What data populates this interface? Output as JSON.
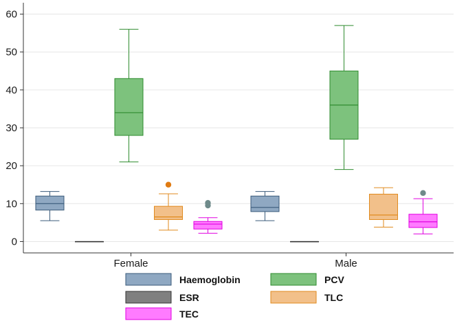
{
  "chart_data": {
    "type": "boxplot",
    "categories": [
      "Female",
      "Male"
    ],
    "ylim": [
      -3,
      63
    ],
    "yticks": [
      0,
      10,
      20,
      30,
      40,
      50,
      60
    ],
    "grid": true,
    "legend_position": "bottom",
    "series": [
      {
        "name": "Haemoglobin",
        "color": "#8fa8c2",
        "stroke": "#3a5a7a",
        "boxes": [
          {
            "min": 5.5,
            "q1": 8.3,
            "median": 10,
            "q3": 12,
            "max": 13.2,
            "outliers": []
          },
          {
            "min": 5.5,
            "q1": 7.9,
            "median": 9,
            "q3": 12,
            "max": 13.2,
            "outliers": []
          }
        ]
      },
      {
        "name": "PCV",
        "color": "#7dc27d",
        "stroke": "#2e8b2e",
        "boxes": [
          {
            "min": 21,
            "q1": 28,
            "median": 34,
            "q3": 43,
            "max": 56,
            "outliers": []
          },
          {
            "min": 19,
            "q1": 27,
            "median": 36,
            "q3": 45,
            "max": 57,
            "outliers": []
          }
        ]
      },
      {
        "name": "ESR",
        "color": "#808080",
        "stroke": "#333333",
        "boxes": [
          {
            "min": 0,
            "q1": 0,
            "median": 0,
            "q3": 0,
            "max": 0,
            "outliers": []
          },
          {
            "min": 0,
            "q1": 0,
            "median": 0,
            "q3": 0,
            "max": 0,
            "outliers": []
          }
        ]
      },
      {
        "name": "TLC",
        "color": "#f2c08a",
        "stroke": "#e08a1e",
        "boxes": [
          {
            "min": 3,
            "q1": 5.8,
            "median": 6.5,
            "q3": 9.3,
            "max": 12.6,
            "outliers": [
              15
            ]
          },
          {
            "min": 3.8,
            "q1": 5.8,
            "median": 7,
            "q3": 12.5,
            "max": 14.2,
            "outliers": []
          }
        ]
      },
      {
        "name": "TEC",
        "color": "#ff7bff",
        "stroke": "#e000e0",
        "boxes": [
          {
            "min": 2.2,
            "q1": 3.3,
            "median": 4.6,
            "q3": 5.3,
            "max": 6.3,
            "outliers": [
              9.5,
              10.2
            ]
          },
          {
            "min": 2,
            "q1": 3.7,
            "median": 5.2,
            "q3": 7.2,
            "max": 11.3,
            "outliers": [
              12.8
            ]
          }
        ]
      }
    ]
  },
  "legend": {
    "items": [
      {
        "label": "Haemoglobin",
        "color": "#8fa8c2",
        "stroke": "#3a5a7a"
      },
      {
        "label": "PCV",
        "color": "#7dc27d",
        "stroke": "#2e8b2e"
      },
      {
        "label": "ESR",
        "color": "#808080",
        "stroke": "#333333"
      },
      {
        "label": "TLC",
        "color": "#f2c08a",
        "stroke": "#e08a1e"
      },
      {
        "label": "TEC",
        "color": "#ff7bff",
        "stroke": "#e000e0"
      }
    ]
  },
  "outlier_colors": {
    "TLC": "#e07b12",
    "TEC": "#6f8a8a"
  }
}
